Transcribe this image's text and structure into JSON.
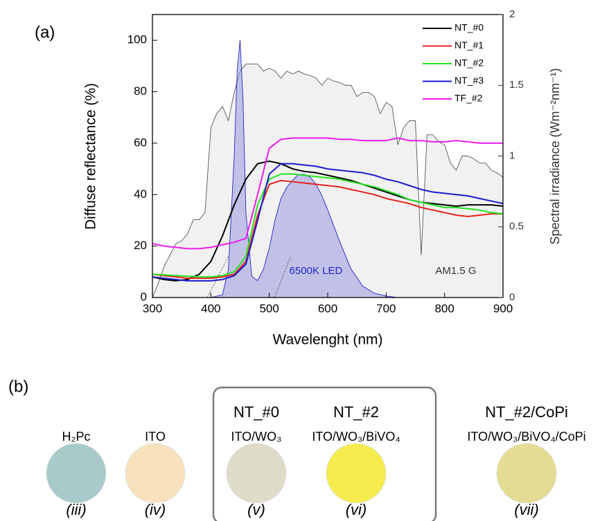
{
  "chart_data": {
    "type": "line",
    "panel_label": "(a)",
    "xlabel": "Wavelenght (nm)",
    "ylabel": "Diffuse reflectance (%)",
    "y2label": "Spectral irradiance (Wm⁻²nm⁻¹)",
    "xlim": [
      300,
      900
    ],
    "xticks": [
      300,
      400,
      500,
      600,
      700,
      800,
      900
    ],
    "ylim": [
      0,
      110
    ],
    "yticks": [
      0,
      20,
      40,
      60,
      80,
      100
    ],
    "y2lim": [
      0,
      2
    ],
    "y2ticks": [
      0,
      0.5,
      1,
      1.5,
      2
    ],
    "legend": "upper right",
    "x": [
      300,
      320,
      340,
      360,
      380,
      400,
      420,
      440,
      460,
      480,
      500,
      520,
      540,
      560,
      580,
      600,
      620,
      640,
      660,
      680,
      700,
      720,
      740,
      760,
      780,
      800,
      820,
      840,
      860,
      880,
      900
    ],
    "series": [
      {
        "name": "NT_#0",
        "color": "#000000",
        "values": [
          8,
          7,
          6.5,
          7,
          9,
          14,
          24,
          36,
          46,
          52,
          53,
          52,
          50,
          49,
          48.5,
          47.5,
          46.5,
          45.5,
          44,
          42.5,
          41,
          39.5,
          38,
          37,
          36.5,
          36,
          35.5,
          36,
          36,
          36,
          35.5
        ]
      },
      {
        "name": "NT_#1",
        "color": "#e8201c",
        "values": [
          9,
          8.5,
          8,
          7.5,
          7.5,
          7.5,
          8,
          9,
          14,
          32,
          44,
          45.5,
          45,
          44.5,
          44,
          43.5,
          43,
          42,
          41,
          40,
          38.5,
          37.5,
          36.5,
          35,
          34,
          33,
          32,
          31.5,
          32,
          32.5,
          32.5
        ]
      },
      {
        "name": "NT_#2",
        "color": "#22e01c",
        "values": [
          9,
          8.8,
          8.5,
          8.3,
          8,
          8,
          8.5,
          10,
          16,
          36,
          46,
          48,
          48,
          47.5,
          47,
          46.5,
          46,
          45,
          44,
          43,
          41.5,
          40,
          38,
          37,
          36,
          35,
          35,
          34.5,
          34,
          33,
          32.5
        ]
      },
      {
        "name": "NT_#3",
        "color": "#1a1ad0",
        "values": [
          8,
          7.5,
          7,
          6.5,
          6.5,
          6.5,
          7,
          8.5,
          13,
          30,
          48,
          52,
          52,
          51.5,
          51,
          50,
          49.5,
          49,
          48.5,
          47.5,
          46,
          45,
          43.5,
          42,
          41,
          40.5,
          40,
          39.5,
          38.5,
          37.5,
          36.5
        ]
      },
      {
        "name": "TF_#2",
        "color": "#ee1aee",
        "values": [
          21,
          20,
          19.5,
          19,
          19,
          19.5,
          20.5,
          21.5,
          23,
          40,
          58,
          61.5,
          62,
          62,
          62,
          62,
          61.5,
          61.5,
          61,
          61,
          61,
          62,
          61,
          61,
          60.5,
          60.5,
          61,
          60.5,
          60,
          60,
          60
        ]
      }
    ],
    "areas": [
      {
        "name": "AM1.5 G",
        "color": "#555555",
        "axis": "y2",
        "x": [
          300,
          310,
          320,
          330,
          340,
          350,
          360,
          370,
          380,
          390,
          400,
          410,
          420,
          430,
          440,
          450,
          460,
          470,
          480,
          490,
          500,
          510,
          520,
          530,
          540,
          550,
          560,
          570,
          580,
          590,
          600,
          610,
          620,
          630,
          640,
          650,
          660,
          670,
          680,
          690,
          700,
          710,
          720,
          730,
          740,
          750,
          760,
          770,
          780,
          790,
          800,
          810,
          820,
          830,
          840,
          850,
          860,
          870,
          880,
          890,
          900
        ],
        "values": [
          0,
          0.1,
          0.22,
          0.3,
          0.38,
          0.4,
          0.45,
          0.55,
          0.55,
          0.6,
          1.2,
          1.3,
          1.35,
          1.25,
          1.45,
          1.6,
          1.65,
          1.65,
          1.65,
          1.6,
          1.62,
          1.6,
          1.55,
          1.6,
          1.58,
          1.6,
          1.58,
          1.57,
          1.55,
          1.5,
          1.55,
          1.53,
          1.52,
          1.5,
          1.5,
          1.42,
          1.45,
          1.45,
          1.42,
          1.3,
          1.38,
          1.35,
          1.08,
          1.2,
          1.25,
          1.25,
          0.3,
          1.15,
          1.15,
          1.1,
          1.08,
          0.95,
          0.9,
          1,
          1,
          0.98,
          0.95,
          0.95,
          0.9,
          0.88,
          0.85
        ]
      },
      {
        "name": "6500K LED",
        "color": "#2222cc",
        "axis": "y2",
        "x": [
          400,
          420,
          430,
          440,
          445,
          450,
          455,
          460,
          470,
          480,
          490,
          500,
          510,
          520,
          530,
          540,
          550,
          560,
          570,
          580,
          590,
          600,
          620,
          640,
          660,
          680,
          700,
          720
        ],
        "values": [
          0,
          0.02,
          0.2,
          1,
          1.6,
          1.82,
          1.4,
          0.6,
          0.15,
          0.12,
          0.2,
          0.35,
          0.55,
          0.7,
          0.78,
          0.83,
          0.87,
          0.87,
          0.85,
          0.8,
          0.72,
          0.62,
          0.4,
          0.2,
          0.08,
          0.03,
          0.01,
          0
        ]
      }
    ]
  },
  "panel_b": {
    "label": "(b)",
    "samples": [
      {
        "formula": "H₂Pc",
        "numeral": "(iii)",
        "color": "#a8cacb"
      },
      {
        "formula": "ITO",
        "numeral": "(iv)",
        "color": "#f8e2bd"
      },
      {
        "title": "NT_#0",
        "formula": "ITO/WO₃",
        "numeral": "(v)",
        "color": "#dedbc8"
      },
      {
        "title": "NT_#2",
        "formula": "ITO/WO₃/BiVO₄",
        "numeral": "(vi)",
        "color": "#f6ec4e"
      },
      {
        "title": "NT_#2/CoPi",
        "formula": "ITO/WO₃/BiVO₄/CoPi",
        "numeral": "(vii)",
        "color": "#e4dc92"
      }
    ]
  }
}
